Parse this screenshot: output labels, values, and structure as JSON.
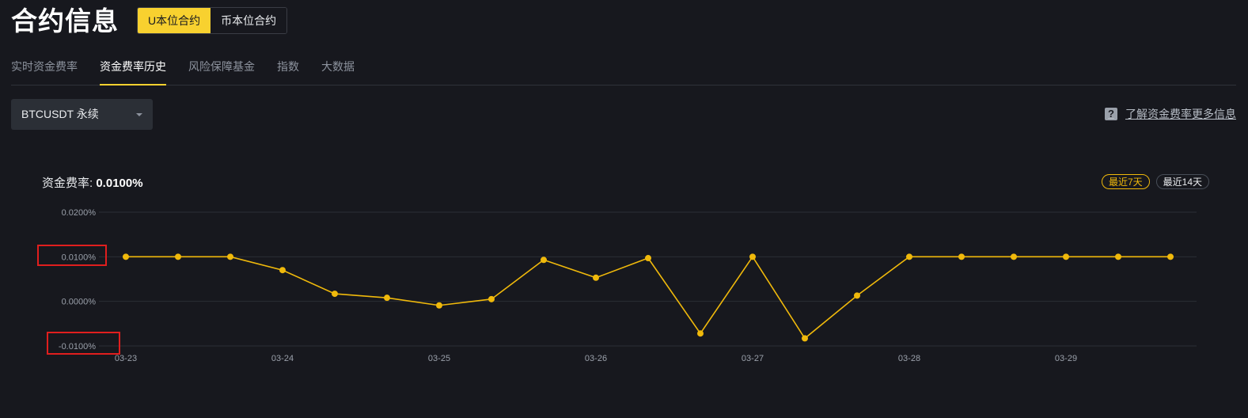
{
  "header": {
    "title": "合约信息",
    "toggle": [
      {
        "label": "U本位合约",
        "active": true
      },
      {
        "label": "币本位合约",
        "active": false
      }
    ]
  },
  "tabs": [
    {
      "label": "实时资金费率",
      "active": false
    },
    {
      "label": "资金费率历史",
      "active": true
    },
    {
      "label": "风险保障基金",
      "active": false
    },
    {
      "label": "指数",
      "active": false
    },
    {
      "label": "大数据",
      "active": false
    }
  ],
  "symbol_select": {
    "value": "BTCUSDT 永续"
  },
  "learn_more": {
    "label": "了解资金费率更多信息"
  },
  "rate": {
    "label": "资金费率:",
    "value": "0.0100%"
  },
  "range": [
    {
      "label": "最近7天",
      "active": true
    },
    {
      "label": "最近14天",
      "active": false
    }
  ],
  "colors": {
    "accent": "#f8d12f",
    "line": "#f0b90b",
    "highlight": "#e01e1e"
  },
  "chart_data": {
    "type": "line",
    "xlabels": [
      "03-23",
      "03-24",
      "03-25",
      "03-26",
      "03-27",
      "03-28",
      "03-29"
    ],
    "ytick_labels": [
      "0.0200%",
      "0.0100%",
      "0.0000%",
      "-0.0100%"
    ],
    "yticks": [
      0.02,
      0.01,
      0.0,
      -0.01
    ],
    "ylim": [
      -0.01,
      0.02
    ],
    "x_start_day": 0,
    "series": [
      {
        "values": [
          0.01,
          0.01,
          0.01,
          0.007,
          0.0017,
          0.0008,
          -0.0009,
          0.0005,
          0.0093,
          0.0053,
          0.0097,
          -0.0072,
          0.01,
          -0.0083,
          0.0013,
          0.01,
          0.01,
          0.01,
          0.01,
          0.01,
          0.01
        ]
      }
    ],
    "grid": true,
    "legend": false
  }
}
